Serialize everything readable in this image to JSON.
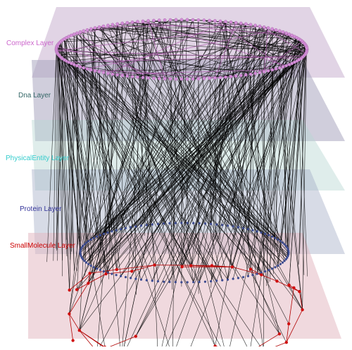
{
  "layers": [
    {
      "key": "complex",
      "label": "Complex Layer",
      "color": "#cc66cc",
      "plane_color": "#c9b0cf"
    },
    {
      "key": "dna",
      "label": "Dna Layer",
      "color": "#336666",
      "plane_color": "#a9a6c0"
    },
    {
      "key": "physical_entity",
      "label": "PhysicalEntity Layer",
      "color": "#33cccc",
      "plane_color": "#b9d8d2"
    },
    {
      "key": "protein",
      "label": "Protein Layer",
      "color": "#333399",
      "plane_color": "#a7b0c7"
    },
    {
      "key": "small_molecule",
      "label": "SmallMolecule Layer",
      "color": "#cc0000",
      "plane_color": "#e4b9c2"
    }
  ],
  "colors": {
    "interlayer_edge": "#000000",
    "complex_node": "#d48ed8",
    "protein_node": "#3b4a8f",
    "small_molecule_node": "#d01010",
    "small_molecule_edge": "#b00000",
    "complex_edge": "#b060b0"
  }
}
